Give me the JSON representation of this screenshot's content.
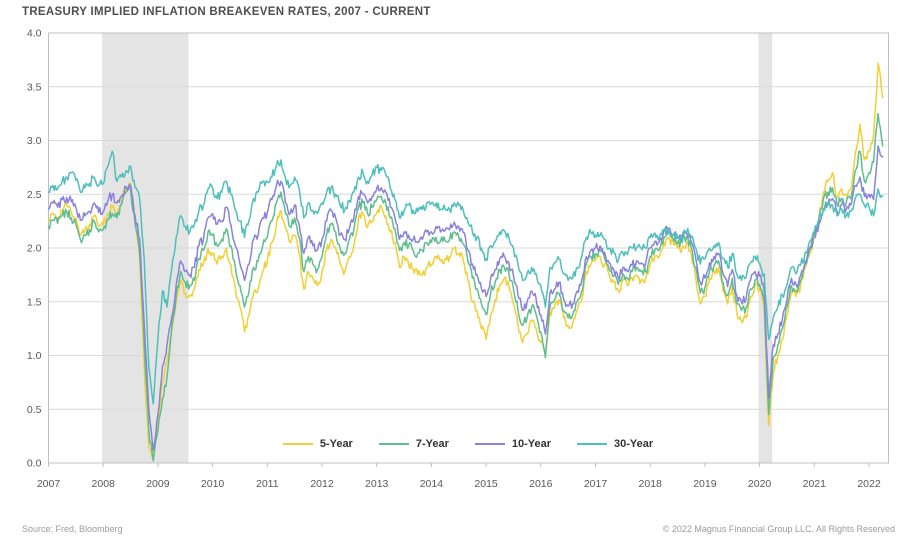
{
  "title": "TREASURY IMPLIED INFLATION BREAKEVEN RATES, 2007 - CURRENT",
  "footer": {
    "source": "Source: Fred, Bloomberg",
    "copyright": "© 2022 Magnus Financial Group LLC. All Rights Reserved"
  },
  "colors": {
    "grid": "#d9d9d9",
    "border": "#c0c0c0",
    "tick_label": "#595959",
    "recession_band": "#e4e4e4"
  },
  "chart_data": {
    "type": "line",
    "title": "TREASURY IMPLIED INFLATION BREAKEVEN RATES, 2007 - CURRENT",
    "xlabel": "",
    "ylabel": "",
    "x_start_year": 2007,
    "points_per_year": 12,
    "x_tick_labels": [
      "2007",
      "2008",
      "2009",
      "2010",
      "2011",
      "2012",
      "2013",
      "2014",
      "2015",
      "2016",
      "2017",
      "2018",
      "2019",
      "2020",
      "2021",
      "2022"
    ],
    "y_tick_labels": [
      "0.0",
      "0.5",
      "1.0",
      "1.5",
      "2.0",
      "2.5",
      "3.0",
      "3.5",
      "4.0"
    ],
    "ylim": [
      0.0,
      4.0
    ],
    "grid": "horizontal",
    "legend_position": "bottom-center-inside",
    "recession_bands": [
      {
        "start": 2007.98,
        "end": 2009.56
      },
      {
        "start": 2019.98,
        "end": 2020.23
      }
    ],
    "series": [
      {
        "name": "5-Year",
        "color": "#f2cf35",
        "values": [
          2.25,
          2.32,
          2.28,
          2.35,
          2.4,
          2.33,
          2.28,
          2.12,
          2.17,
          2.22,
          2.3,
          2.2,
          2.22,
          2.32,
          2.38,
          2.3,
          2.42,
          2.55,
          2.6,
          2.25,
          1.9,
          0.9,
          0.15,
          0.05,
          0.4,
          0.75,
          0.95,
          1.2,
          1.5,
          1.7,
          1.58,
          1.55,
          1.62,
          1.8,
          1.85,
          2.0,
          1.95,
          1.85,
          1.92,
          2.0,
          1.85,
          1.62,
          1.45,
          1.22,
          1.38,
          1.58,
          1.62,
          1.78,
          1.88,
          2.05,
          2.22,
          2.35,
          2.18,
          2.05,
          2.12,
          1.95,
          1.62,
          1.78,
          1.72,
          1.65,
          1.78,
          1.98,
          2.08,
          2.0,
          1.85,
          1.78,
          1.92,
          2.02,
          2.28,
          2.32,
          2.2,
          2.25,
          2.32,
          2.38,
          2.3,
          2.15,
          2.05,
          1.82,
          1.92,
          1.85,
          1.8,
          1.75,
          1.75,
          1.82,
          1.85,
          1.92,
          1.88,
          1.9,
          1.92,
          2.0,
          1.95,
          1.88,
          1.7,
          1.5,
          1.42,
          1.25,
          1.15,
          1.38,
          1.52,
          1.65,
          1.72,
          1.65,
          1.48,
          1.28,
          1.12,
          1.2,
          1.32,
          1.25,
          1.12,
          1.02,
          1.4,
          1.45,
          1.52,
          1.35,
          1.28,
          1.3,
          1.42,
          1.52,
          1.78,
          1.85,
          1.88,
          1.92,
          1.85,
          1.75,
          1.68,
          1.6,
          1.7,
          1.65,
          1.72,
          1.75,
          1.7,
          1.72,
          1.85,
          1.92,
          1.92,
          2.05,
          2.1,
          2.05,
          2.0,
          2.0,
          2.05,
          1.95,
          1.72,
          1.48,
          1.55,
          1.72,
          1.78,
          1.82,
          1.6,
          1.48,
          1.65,
          1.4,
          1.32,
          1.35,
          1.55,
          1.65,
          1.62,
          1.45,
          0.35,
          0.85,
          1.0,
          1.15,
          1.38,
          1.6,
          1.55,
          1.65,
          1.82,
          1.95,
          2.12,
          2.28,
          2.52,
          2.62,
          2.7,
          2.48,
          2.55,
          2.5,
          2.55,
          2.88,
          3.15,
          2.82,
          2.9,
          3.05,
          3.72,
          3.4
        ]
      },
      {
        "name": "7-Year",
        "color": "#5dbe8e",
        "values": [
          2.2,
          2.26,
          2.23,
          2.3,
          2.34,
          2.28,
          2.22,
          2.08,
          2.12,
          2.17,
          2.25,
          2.15,
          2.17,
          2.27,
          2.32,
          2.28,
          2.4,
          2.52,
          2.55,
          2.22,
          1.95,
          1.1,
          0.3,
          0.02,
          0.3,
          0.6,
          0.8,
          1.25,
          1.55,
          1.78,
          1.68,
          1.65,
          1.7,
          1.9,
          1.98,
          2.15,
          2.12,
          2.02,
          2.08,
          2.18,
          2.02,
          1.82,
          1.65,
          1.45,
          1.6,
          1.82,
          1.88,
          2.02,
          2.1,
          2.25,
          2.42,
          2.52,
          2.32,
          2.2,
          2.28,
          2.1,
          1.78,
          1.92,
          1.85,
          1.8,
          1.92,
          2.12,
          2.22,
          2.15,
          2.0,
          1.95,
          2.08,
          2.18,
          2.38,
          2.42,
          2.32,
          2.38,
          2.45,
          2.48,
          2.42,
          2.28,
          2.18,
          1.98,
          2.05,
          2.02,
          1.98,
          1.95,
          1.98,
          2.05,
          2.05,
          2.1,
          2.06,
          2.07,
          2.08,
          2.15,
          2.1,
          2.04,
          1.88,
          1.72,
          1.62,
          1.48,
          1.38,
          1.58,
          1.68,
          1.8,
          1.82,
          1.76,
          1.62,
          1.42,
          1.28,
          1.35,
          1.45,
          1.38,
          1.22,
          0.98,
          1.45,
          1.52,
          1.58,
          1.42,
          1.35,
          1.38,
          1.5,
          1.6,
          1.85,
          1.92,
          1.95,
          1.97,
          1.9,
          1.8,
          1.74,
          1.66,
          1.76,
          1.72,
          1.78,
          1.82,
          1.78,
          1.78,
          1.92,
          1.98,
          1.98,
          2.1,
          2.14,
          2.09,
          2.05,
          2.05,
          2.1,
          2.0,
          1.82,
          1.58,
          1.63,
          1.78,
          1.84,
          1.88,
          1.68,
          1.56,
          1.72,
          1.48,
          1.42,
          1.44,
          1.62,
          1.7,
          1.66,
          1.52,
          0.45,
          0.98,
          1.1,
          1.25,
          1.45,
          1.65,
          1.6,
          1.7,
          1.86,
          2.0,
          2.12,
          2.26,
          2.46,
          2.52,
          2.56,
          2.4,
          2.46,
          2.42,
          2.46,
          2.72,
          2.9,
          2.62,
          2.7,
          2.8,
          3.25,
          2.95
        ]
      },
      {
        "name": "10-Year",
        "color": "#8a82db",
        "values": [
          2.36,
          2.42,
          2.38,
          2.45,
          2.47,
          2.43,
          2.38,
          2.26,
          2.3,
          2.34,
          2.42,
          2.33,
          2.34,
          2.44,
          2.5,
          2.42,
          2.48,
          2.57,
          2.58,
          2.3,
          2.08,
          1.3,
          0.5,
          0.12,
          0.45,
          0.9,
          1.1,
          1.35,
          1.65,
          1.88,
          1.78,
          1.75,
          1.82,
          2.02,
          2.08,
          2.28,
          2.32,
          2.22,
          2.25,
          2.38,
          2.22,
          2.02,
          1.85,
          1.7,
          1.85,
          2.08,
          2.12,
          2.28,
          2.33,
          2.45,
          2.58,
          2.62,
          2.42,
          2.32,
          2.4,
          2.22,
          1.95,
          2.1,
          2.02,
          1.98,
          2.08,
          2.25,
          2.35,
          2.28,
          2.12,
          2.08,
          2.18,
          2.28,
          2.48,
          2.5,
          2.42,
          2.48,
          2.55,
          2.56,
          2.52,
          2.38,
          2.28,
          2.08,
          2.15,
          2.12,
          2.08,
          2.05,
          2.08,
          2.15,
          2.15,
          2.2,
          2.15,
          2.16,
          2.17,
          2.24,
          2.2,
          2.14,
          1.98,
          1.85,
          1.75,
          1.62,
          1.55,
          1.72,
          1.8,
          1.9,
          1.92,
          1.86,
          1.74,
          1.56,
          1.42,
          1.5,
          1.6,
          1.52,
          1.38,
          1.2,
          1.58,
          1.62,
          1.68,
          1.52,
          1.46,
          1.48,
          1.6,
          1.7,
          1.92,
          1.98,
          2.0,
          2.02,
          1.96,
          1.86,
          1.8,
          1.72,
          1.82,
          1.78,
          1.84,
          1.88,
          1.86,
          1.86,
          2.0,
          2.06,
          2.06,
          2.16,
          2.18,
          2.12,
          2.1,
          2.1,
          2.14,
          2.06,
          1.9,
          1.68,
          1.72,
          1.86,
          1.92,
          1.95,
          1.76,
          1.64,
          1.8,
          1.56,
          1.5,
          1.52,
          1.7,
          1.78,
          1.74,
          1.6,
          0.6,
          1.1,
          1.2,
          1.34,
          1.52,
          1.72,
          1.66,
          1.74,
          1.88,
          2.0,
          2.1,
          2.22,
          2.36,
          2.42,
          2.46,
          2.34,
          2.4,
          2.36,
          2.4,
          2.58,
          2.66,
          2.48,
          2.5,
          2.45,
          2.95,
          2.85
        ]
      },
      {
        "name": "30-Year",
        "color": "#4ebfba",
        "values": [
          2.52,
          2.58,
          2.55,
          2.62,
          2.66,
          2.7,
          2.63,
          2.52,
          2.56,
          2.6,
          2.66,
          2.58,
          2.6,
          2.76,
          2.9,
          2.62,
          2.66,
          2.72,
          2.76,
          2.56,
          2.45,
          1.9,
          0.9,
          0.55,
          1.15,
          1.6,
          1.45,
          1.8,
          2.1,
          2.3,
          2.2,
          2.15,
          2.22,
          2.35,
          2.4,
          2.55,
          2.56,
          2.46,
          2.52,
          2.62,
          2.5,
          2.35,
          2.25,
          2.1,
          2.26,
          2.46,
          2.52,
          2.62,
          2.62,
          2.66,
          2.76,
          2.82,
          2.65,
          2.58,
          2.66,
          2.55,
          2.28,
          2.42,
          2.35,
          2.32,
          2.42,
          2.52,
          2.56,
          2.5,
          2.4,
          2.36,
          2.44,
          2.52,
          2.66,
          2.7,
          2.62,
          2.68,
          2.75,
          2.72,
          2.68,
          2.55,
          2.45,
          2.28,
          2.35,
          2.4,
          2.35,
          2.34,
          2.36,
          2.42,
          2.42,
          2.42,
          2.36,
          2.36,
          2.36,
          2.42,
          2.4,
          2.35,
          2.24,
          2.15,
          2.1,
          2.0,
          1.9,
          2.02,
          2.06,
          2.15,
          2.16,
          2.1,
          2.0,
          1.85,
          1.7,
          1.76,
          1.82,
          1.76,
          1.65,
          1.45,
          1.82,
          1.86,
          1.9,
          1.76,
          1.7,
          1.72,
          1.82,
          1.92,
          2.1,
          2.14,
          2.12,
          2.12,
          2.08,
          2.0,
          1.96,
          1.88,
          1.96,
          1.94,
          2.0,
          2.0,
          2.0,
          2.0,
          2.1,
          2.14,
          2.1,
          2.16,
          2.16,
          2.12,
          2.1,
          2.1,
          2.15,
          2.1,
          2.0,
          1.85,
          1.9,
          2.0,
          2.02,
          2.05,
          1.9,
          1.82,
          1.95,
          1.76,
          1.7,
          1.72,
          1.86,
          1.92,
          1.86,
          1.76,
          1.15,
          1.35,
          1.45,
          1.56,
          1.66,
          1.82,
          1.76,
          1.84,
          1.96,
          2.06,
          2.15,
          2.26,
          2.36,
          2.4,
          2.4,
          2.3,
          2.36,
          2.3,
          2.34,
          2.46,
          2.5,
          2.4,
          2.38,
          2.3,
          2.55,
          2.48
        ]
      }
    ]
  }
}
